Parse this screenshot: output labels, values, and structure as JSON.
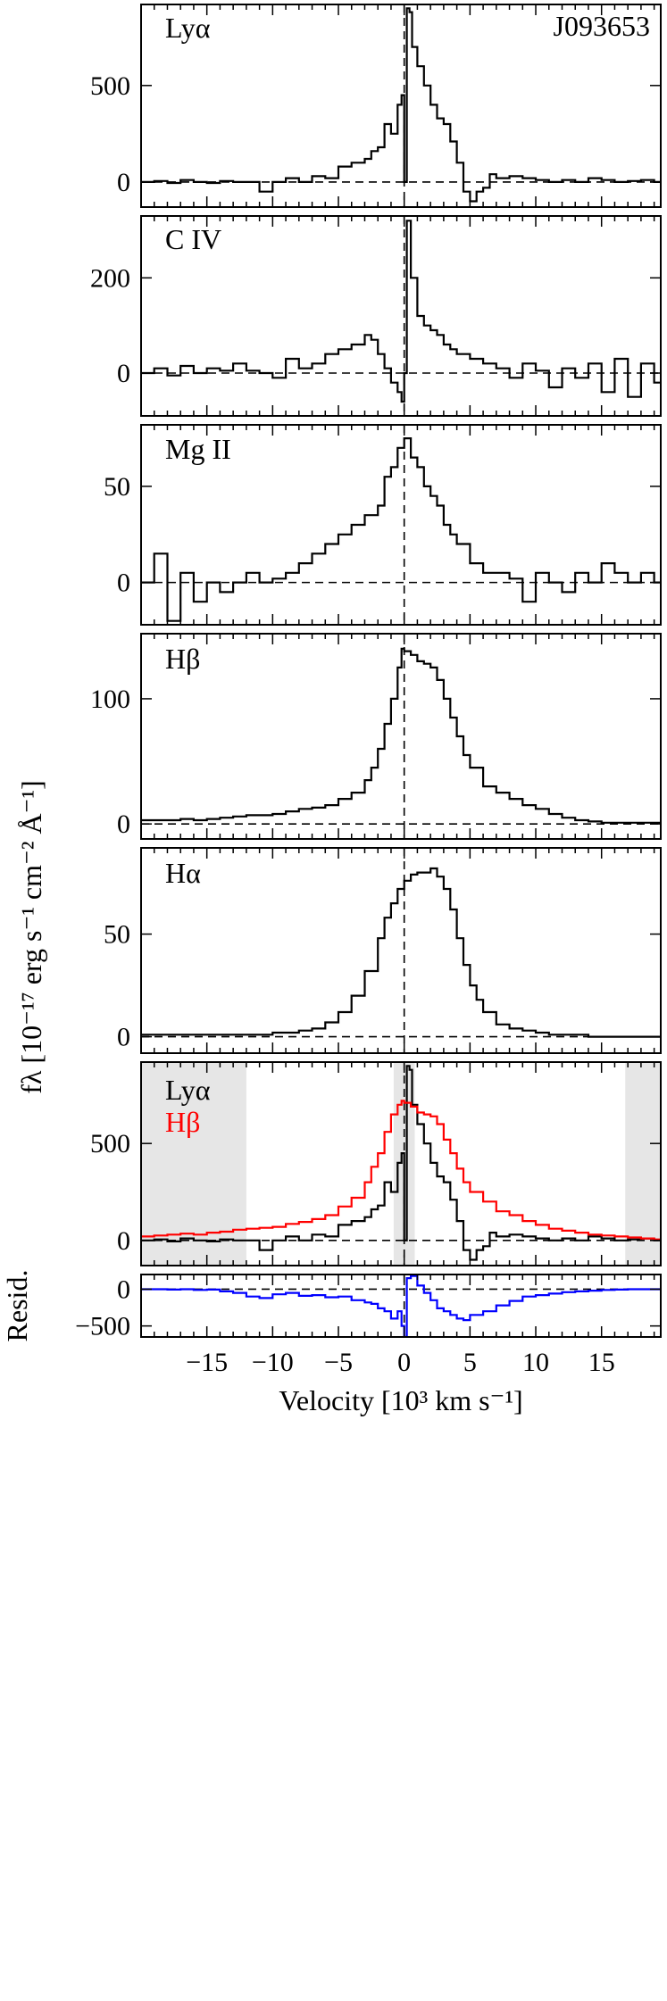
{
  "chart_data": [
    {
      "type": "line",
      "panel": "lya",
      "label": "Lyα",
      "object": "J093653",
      "xlim": [
        -20,
        19.5
      ],
      "ylim": [
        -130,
        920
      ],
      "yticks": [
        0,
        500
      ],
      "zero_line": true,
      "vline": 0,
      "series": [
        {
          "color": "#000000",
          "x": [
            -20,
            -19,
            -18,
            -17,
            -16,
            -15,
            -14,
            -13,
            -12,
            -11,
            -10,
            -9,
            -8,
            -7,
            -6,
            -5,
            -4,
            -3,
            -2.5,
            -2,
            -1.5,
            -1,
            -0.5,
            -0.2,
            0,
            0.2,
            0.4,
            0.6,
            1,
            1.5,
            2,
            2.5,
            3,
            3.5,
            4,
            4.5,
            5,
            5.5,
            6,
            6.5,
            7,
            8,
            9,
            10,
            11,
            12,
            13,
            14,
            15,
            16,
            17,
            18,
            19
          ],
          "y": [
            0,
            5,
            -5,
            10,
            0,
            -5,
            5,
            0,
            0,
            -50,
            0,
            20,
            0,
            30,
            20,
            80,
            100,
            120,
            160,
            180,
            300,
            250,
            400,
            450,
            0,
            900,
            880,
            700,
            600,
            500,
            400,
            330,
            300,
            210,
            100,
            -50,
            -100,
            -50,
            -30,
            40,
            20,
            30,
            20,
            10,
            0,
            10,
            0,
            20,
            10,
            0,
            5,
            10,
            0
          ]
        }
      ]
    },
    {
      "type": "line",
      "panel": "civ",
      "label": "C IV",
      "xlim": [
        -20,
        19.5
      ],
      "ylim": [
        -90,
        330
      ],
      "yticks": [
        0,
        200
      ],
      "zero_line": true,
      "vline": 0,
      "series": [
        {
          "color": "#000000",
          "x": [
            -20,
            -19,
            -18,
            -17,
            -16,
            -15,
            -14,
            -13,
            -12,
            -11,
            -10,
            -9,
            -8,
            -7,
            -6,
            -5,
            -4,
            -3,
            -2.5,
            -2,
            -1.5,
            -1,
            -0.5,
            -0.2,
            0,
            0.2,
            0.5,
            1,
            1.5,
            2,
            2.5,
            3,
            3.5,
            4,
            5,
            6,
            7,
            8,
            9,
            10,
            11,
            12,
            13,
            14,
            15,
            16,
            17,
            18,
            19
          ],
          "y": [
            0,
            10,
            -5,
            15,
            0,
            10,
            5,
            20,
            5,
            0,
            -10,
            30,
            10,
            20,
            40,
            50,
            60,
            80,
            70,
            40,
            10,
            -20,
            -40,
            -60,
            0,
            320,
            200,
            120,
            100,
            90,
            80,
            60,
            50,
            40,
            30,
            20,
            10,
            -10,
            20,
            5,
            -30,
            10,
            -10,
            20,
            -40,
            30,
            -50,
            20,
            -20
          ]
        }
      ]
    },
    {
      "type": "line",
      "panel": "mgii",
      "label": "Mg II",
      "xlim": [
        -20,
        19.5
      ],
      "ylim": [
        -22,
        82
      ],
      "yticks": [
        0,
        50
      ],
      "zero_line": true,
      "vline": 0,
      "series": [
        {
          "color": "#000000",
          "x": [
            -20,
            -19,
            -18,
            -17,
            -16,
            -15,
            -14,
            -13,
            -12,
            -11,
            -10,
            -9,
            -8,
            -7,
            -6,
            -5,
            -4,
            -3,
            -2,
            -1.5,
            -1,
            -0.5,
            0,
            0.5,
            1,
            1.5,
            2,
            2.5,
            3,
            3.5,
            4,
            5,
            6,
            7,
            8,
            9,
            10,
            11,
            12,
            13,
            14,
            15,
            16,
            17,
            18,
            19
          ],
          "y": [
            0,
            15,
            -20,
            5,
            -10,
            0,
            -5,
            0,
            5,
            0,
            2,
            5,
            10,
            15,
            20,
            25,
            30,
            35,
            40,
            55,
            60,
            70,
            75,
            65,
            60,
            50,
            45,
            40,
            30,
            25,
            20,
            10,
            5,
            5,
            2,
            -10,
            5,
            0,
            -5,
            5,
            0,
            10,
            5,
            0,
            5,
            0
          ]
        }
      ]
    },
    {
      "type": "line",
      "panel": "hbeta",
      "label": "Hβ",
      "xlim": [
        -20,
        19.5
      ],
      "ylim": [
        -12,
        152
      ],
      "yticks": [
        0,
        100
      ],
      "zero_line": true,
      "vline": 0,
      "series": [
        {
          "color": "#000000",
          "x": [
            -20,
            -19,
            -18,
            -17,
            -16,
            -15,
            -14,
            -13,
            -12,
            -11,
            -10,
            -9,
            -8,
            -7,
            -6,
            -5,
            -4,
            -3,
            -2.5,
            -2,
            -1.5,
            -1,
            -0.5,
            -0.2,
            0,
            0.5,
            1,
            1.5,
            2,
            2.5,
            3,
            3.5,
            4,
            4.5,
            5,
            6,
            7,
            8,
            9,
            10,
            11,
            12,
            13,
            14,
            15,
            16,
            17,
            18,
            19
          ],
          "y": [
            3,
            3,
            3,
            4,
            3,
            4,
            5,
            6,
            7,
            7,
            8,
            10,
            12,
            13,
            15,
            20,
            25,
            35,
            45,
            60,
            80,
            100,
            125,
            140,
            138,
            135,
            130,
            128,
            125,
            115,
            100,
            85,
            70,
            55,
            45,
            30,
            25,
            20,
            15,
            12,
            8,
            5,
            3,
            2,
            1,
            1,
            1,
            1,
            1
          ]
        }
      ]
    },
    {
      "type": "line",
      "panel": "halpha",
      "label": "Hα",
      "xlim": [
        -20,
        19.5
      ],
      "ylim": [
        -8,
        92
      ],
      "yticks": [
        0,
        50
      ],
      "zero_line": true,
      "vline": 0,
      "series": [
        {
          "color": "#000000",
          "x": [
            -20,
            -19,
            -18,
            -17,
            -16,
            -15,
            -14,
            -13,
            -12,
            -11,
            -10,
            -9,
            -8,
            -7,
            -6,
            -5,
            -4,
            -3,
            -2,
            -1.5,
            -1,
            -0.5,
            0,
            0.5,
            1,
            1.5,
            2,
            2.5,
            3,
            3.5,
            4,
            4.5,
            5,
            5.5,
            6,
            7,
            8,
            9,
            10,
            11,
            12,
            13,
            14,
            15,
            16,
            17,
            18,
            19
          ],
          "y": [
            1,
            1,
            1,
            1,
            1,
            1,
            1,
            1,
            1,
            1,
            2,
            2,
            3,
            4,
            7,
            12,
            20,
            32,
            48,
            58,
            65,
            72,
            76,
            79,
            80,
            80,
            82,
            78,
            72,
            62,
            48,
            35,
            25,
            18,
            12,
            6,
            4,
            3,
            2,
            1,
            1,
            1,
            0,
            0,
            0,
            0,
            0,
            0
          ]
        }
      ]
    },
    {
      "type": "line",
      "panel": "compare",
      "labels": [
        "Lyα",
        "Hβ"
      ],
      "label_colors": [
        "#000000",
        "#ff0000"
      ],
      "xlim": [
        -20,
        19.5
      ],
      "ylim": [
        -130,
        920
      ],
      "yticks": [
        0,
        500
      ],
      "zero_line": true,
      "vline": 0,
      "shaded_ranges": [
        [
          -20,
          -12
        ],
        [
          -0.8,
          0.8
        ],
        [
          16.8,
          19.5
        ]
      ],
      "series": [
        {
          "color": "#000000",
          "x": [
            -20,
            -19,
            -18,
            -17,
            -16,
            -15,
            -14,
            -13,
            -12,
            -11,
            -10,
            -9,
            -8,
            -7,
            -6,
            -5,
            -4,
            -3,
            -2.5,
            -2,
            -1.5,
            -1,
            -0.5,
            -0.2,
            0,
            0.2,
            0.4,
            0.6,
            1,
            1.5,
            2,
            2.5,
            3,
            3.5,
            4,
            4.5,
            5,
            5.5,
            6,
            6.5,
            7,
            8,
            9,
            10,
            11,
            12,
            13,
            14,
            15,
            16,
            17,
            18,
            19
          ],
          "y": [
            0,
            5,
            -5,
            10,
            0,
            -5,
            5,
            0,
            0,
            -50,
            0,
            20,
            0,
            30,
            20,
            80,
            100,
            120,
            160,
            180,
            300,
            250,
            400,
            450,
            0,
            900,
            880,
            700,
            600,
            500,
            400,
            330,
            300,
            210,
            100,
            -50,
            -100,
            -50,
            -30,
            40,
            20,
            30,
            20,
            10,
            0,
            10,
            0,
            20,
            10,
            0,
            5,
            10,
            0
          ]
        },
        {
          "color": "#ff0000",
          "x": [
            -20,
            -19,
            -18,
            -17,
            -16,
            -15,
            -14,
            -13,
            -12,
            -11,
            -10,
            -9,
            -8,
            -7,
            -6,
            -5,
            -4,
            -3,
            -2.5,
            -2,
            -1.5,
            -1,
            -0.5,
            -0.2,
            0,
            0.5,
            1,
            1.5,
            2,
            2.5,
            3,
            3.5,
            4,
            4.5,
            5,
            6,
            7,
            8,
            9,
            10,
            11,
            12,
            13,
            14,
            15,
            16,
            17,
            18,
            19
          ],
          "y": [
            20,
            25,
            30,
            35,
            30,
            40,
            45,
            55,
            60,
            65,
            70,
            85,
            95,
            110,
            130,
            175,
            220,
            300,
            380,
            450,
            560,
            650,
            700,
            720,
            710,
            690,
            660,
            650,
            640,
            600,
            520,
            450,
            370,
            300,
            250,
            200,
            150,
            130,
            100,
            80,
            60,
            50,
            40,
            30,
            25,
            20,
            15,
            10,
            5
          ]
        }
      ]
    },
    {
      "type": "line",
      "panel": "resid",
      "ylabel": "Resid.",
      "xlim": [
        -20,
        19.5
      ],
      "ylim": [
        -650,
        200
      ],
      "yticks": [
        0,
        -500
      ],
      "zero_line": true,
      "vline": 0,
      "xticks": [
        -15,
        -10,
        -5,
        0,
        5,
        10,
        15
      ],
      "xtick_labels": [
        "−15",
        "−10",
        "−5",
        "0",
        "5",
        "10",
        "15"
      ],
      "xlabel": "Velocity [10³ km s⁻¹]",
      "series": [
        {
          "color": "#0000ff",
          "x": [
            -20,
            -19,
            -18,
            -17,
            -16,
            -15,
            -14,
            -13,
            -12,
            -11,
            -10,
            -9,
            -8,
            -7,
            -6,
            -5,
            -4,
            -3,
            -2.5,
            -2,
            -1.5,
            -1,
            -0.5,
            -0.2,
            0,
            0.2,
            0.5,
            1,
            1.5,
            2,
            2.5,
            3,
            3.5,
            4,
            4.5,
            5,
            6,
            7,
            8,
            9,
            10,
            11,
            12,
            13,
            14,
            15,
            16,
            17,
            18,
            19
          ],
          "y": [
            0,
            0,
            -5,
            0,
            -10,
            -5,
            -30,
            -50,
            -100,
            -120,
            -70,
            -50,
            -90,
            -80,
            -110,
            -100,
            -150,
            -180,
            -200,
            -260,
            -300,
            -400,
            -300,
            -500,
            -650,
            150,
            180,
            50,
            -50,
            -150,
            -260,
            -300,
            -350,
            -400,
            -420,
            -350,
            -300,
            -220,
            -160,
            -100,
            -80,
            -60,
            -40,
            -30,
            -20,
            -10,
            -5,
            0,
            0,
            0
          ]
        }
      ]
    }
  ],
  "yaxis_title": "fλ [10⁻¹⁷ erg s⁻¹ cm⁻² Å⁻¹]"
}
